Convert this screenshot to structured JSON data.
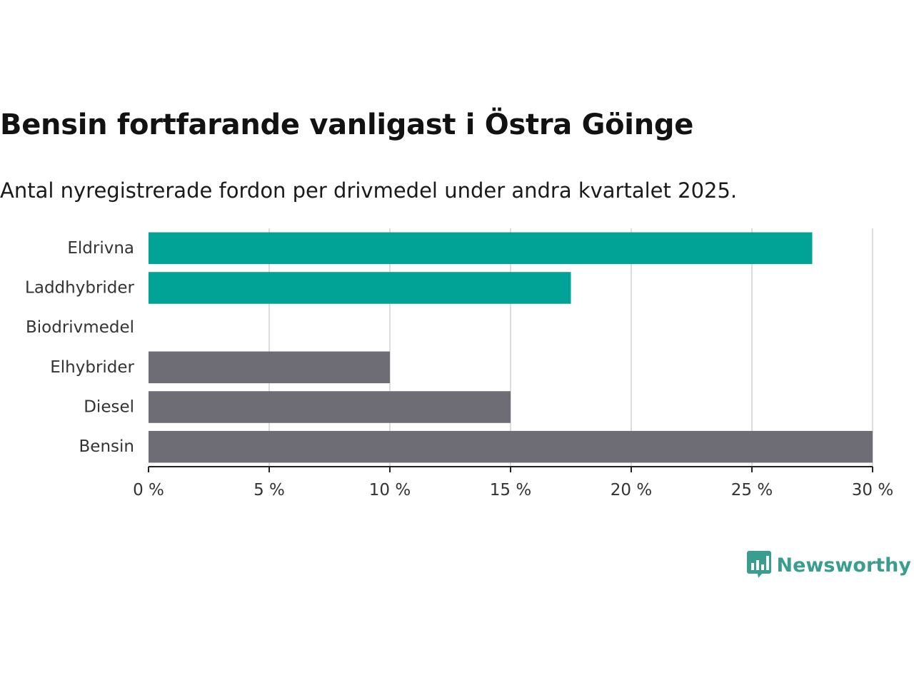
{
  "title": "Bensin fortfarande vanligast i Östra Göinge",
  "subtitle": "Antal nyregistrerade fordon per drivmedel under andra kvartalet 2025.",
  "brand": {
    "name": "Newsworthy",
    "icon": "newsworthy-logo-icon"
  },
  "colors": {
    "highlight": "#00a396",
    "default": "#6e6d75",
    "grid": "#dddddd",
    "axis": "#222222"
  },
  "chart_data": {
    "type": "bar",
    "orientation": "horizontal",
    "categories": [
      "Eldrivna",
      "Laddhybrider",
      "Biodrivmedel",
      "Elhybrider",
      "Diesel",
      "Bensin"
    ],
    "values": [
      27.5,
      17.5,
      0,
      10,
      15,
      30
    ],
    "highlighted": [
      true,
      true,
      true,
      false,
      false,
      false
    ],
    "xlim": [
      0,
      30
    ],
    "ticks": [
      0,
      5,
      10,
      15,
      20,
      25,
      30
    ],
    "tick_labels": [
      "0 %",
      "5 %",
      "10 %",
      "15 %",
      "20 %",
      "25 %",
      "30 %"
    ],
    "grid": true,
    "xlabel": "",
    "ylabel": ""
  }
}
